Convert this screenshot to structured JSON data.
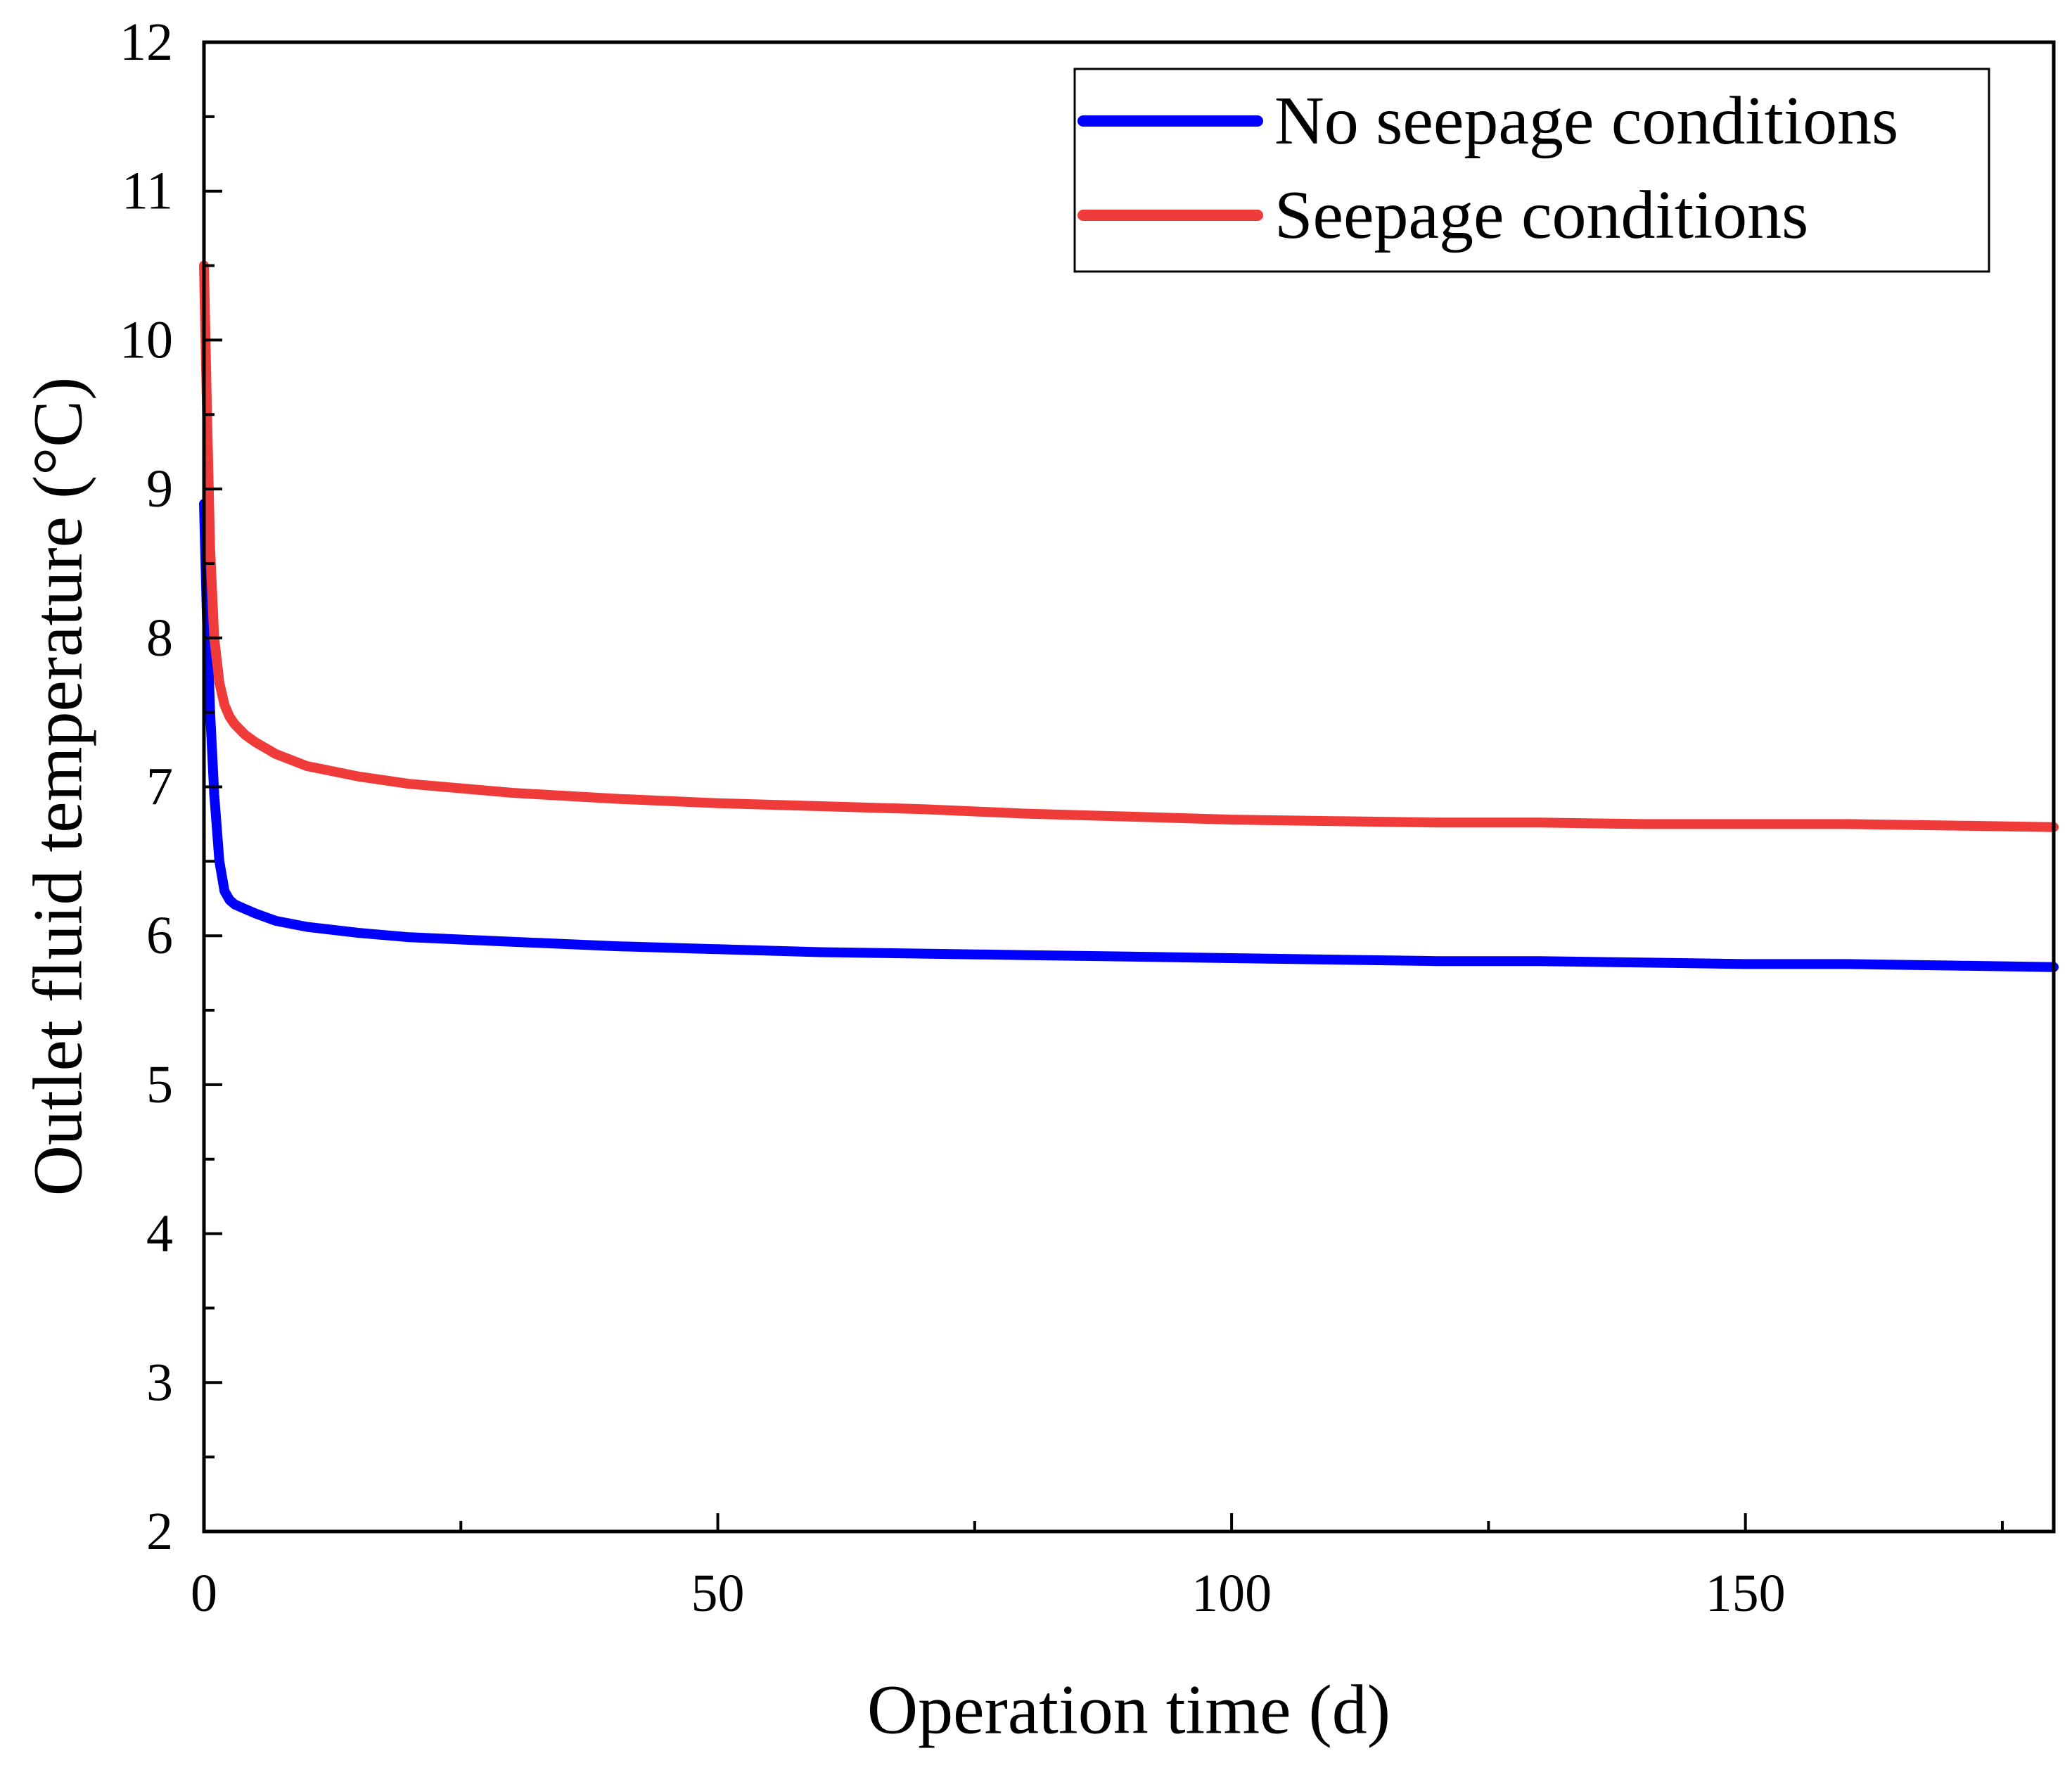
{
  "chart_data": {
    "type": "line",
    "title": "",
    "xlabel": "Operation time (d)",
    "ylabel": "Outlet fluid temperature (°C)",
    "xlim": [
      0,
      180
    ],
    "ylim": [
      2,
      12
    ],
    "xticks": [
      0,
      50,
      100,
      150
    ],
    "xtick_labels": [
      "0",
      "50",
      "100",
      "150"
    ],
    "x_minor_ticks": [
      25,
      75,
      125,
      175
    ],
    "yticks": [
      2,
      3,
      4,
      5,
      6,
      7,
      8,
      9,
      10,
      11,
      12
    ],
    "ytick_labels": [
      "2",
      "3",
      "4",
      "5",
      "6",
      "7",
      "8",
      "9",
      "10",
      "11",
      "12"
    ],
    "y_minor_ticks": [
      2.5,
      3.5,
      4.5,
      5.5,
      6.5,
      7.5,
      8.5,
      9.5,
      10.5,
      11.5
    ],
    "grid": false,
    "legend_position": "top-right",
    "series": [
      {
        "name": "No seepage conditions",
        "color": "#0000ff",
        "x": [
          0,
          0.3,
          0.6,
          1,
          1.5,
          2,
          2.5,
          3,
          4,
          5,
          7,
          10,
          15,
          20,
          30,
          40,
          50,
          60,
          70,
          80,
          90,
          100,
          110,
          120,
          130,
          140,
          150,
          160,
          170,
          180
        ],
        "y": [
          8.9,
          8.1,
          7.5,
          6.95,
          6.5,
          6.3,
          6.24,
          6.21,
          6.18,
          6.15,
          6.1,
          6.06,
          6.02,
          5.99,
          5.96,
          5.93,
          5.91,
          5.89,
          5.88,
          5.87,
          5.86,
          5.85,
          5.84,
          5.83,
          5.83,
          5.82,
          5.81,
          5.81,
          5.8,
          5.79
        ]
      },
      {
        "name": "Seepage conditions",
        "color": "#ef3b39",
        "x": [
          0,
          0.3,
          0.6,
          1,
          1.5,
          2,
          2.5,
          3,
          4,
          5,
          7,
          10,
          15,
          20,
          25,
          30,
          40,
          50,
          60,
          70,
          80,
          90,
          100,
          110,
          120,
          130,
          140,
          150,
          160,
          170,
          180
        ],
        "y": [
          10.5,
          9.5,
          8.6,
          8.0,
          7.7,
          7.55,
          7.47,
          7.42,
          7.35,
          7.3,
          7.22,
          7.14,
          7.07,
          7.02,
          6.99,
          6.96,
          6.92,
          6.89,
          6.87,
          6.85,
          6.82,
          6.8,
          6.78,
          6.77,
          6.76,
          6.76,
          6.75,
          6.75,
          6.75,
          6.74,
          6.73
        ]
      }
    ]
  }
}
